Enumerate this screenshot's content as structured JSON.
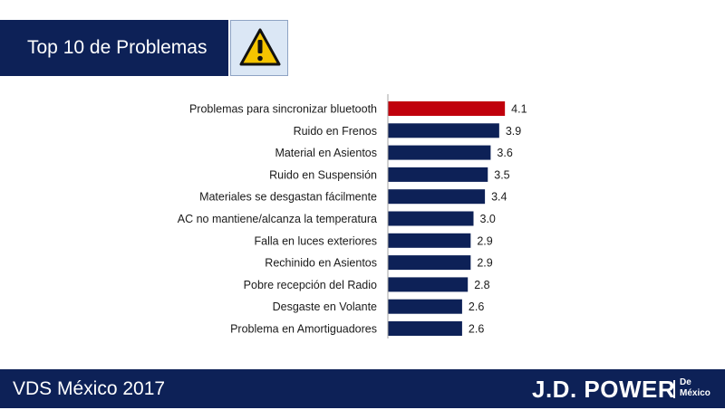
{
  "header": {
    "title": "Top 10 de Problemas",
    "icon": "warning-icon"
  },
  "footer": {
    "left": "VDS México 2017",
    "brand": "J.D. POWER",
    "brand_sub_1": "De",
    "brand_sub_2": "México"
  },
  "colors": {
    "navy": "#0d2157",
    "highlight": "#c0000c"
  },
  "chart_data": {
    "type": "bar",
    "orientation": "horizontal",
    "title": "",
    "categories": [
      "Problemas para sincronizar bluetooth",
      "Ruido en Frenos",
      "Material en Asientos",
      "Ruido en Suspensión",
      "Materiales se desgastan fácilmente",
      "AC no mantiene/alcanza la temperatura",
      "Falla en luces exteriores",
      "Rechinido en Asientos",
      "Pobre recepción del Radio",
      "Desgaste en Volante",
      "Problema en Amortiguadores"
    ],
    "values": [
      4.1,
      3.9,
      3.6,
      3.5,
      3.4,
      3.0,
      2.9,
      2.9,
      2.8,
      2.6,
      2.6
    ],
    "value_labels": [
      "4.1",
      "3.9",
      "3.6",
      "3.5",
      "3.4",
      "3.0",
      "2.9",
      "2.9",
      "2.8",
      "2.6",
      "2.6"
    ],
    "highlight_index": 0,
    "xlim": [
      0,
      4.5
    ],
    "grid": false,
    "legend": "none"
  }
}
